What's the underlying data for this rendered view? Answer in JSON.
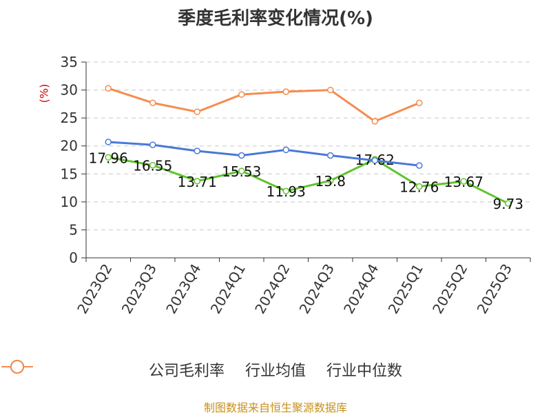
{
  "chart_data": {
    "type": "line",
    "title": "季度毛利率变化情况(%)",
    "ylabel": "(%)",
    "categories": [
      "2023Q2",
      "2023Q3",
      "2023Q4",
      "2024Q1",
      "2024Q2",
      "2024Q3",
      "2024Q4",
      "2025Q1",
      "2025Q2",
      "2025Q3"
    ],
    "ylim": [
      0,
      35
    ],
    "yticks": [
      0,
      5,
      10,
      15,
      20,
      25,
      30,
      35
    ],
    "grid": true,
    "legend_position": "bottom",
    "series": [
      {
        "name": "公司毛利率",
        "color": "#5ec42b",
        "labels": true,
        "values": [
          17.96,
          16.55,
          13.71,
          15.53,
          11.93,
          13.8,
          17.62,
          12.76,
          13.67,
          9.73
        ]
      },
      {
        "name": "行业均值",
        "color": "#4a78d8",
        "labels": false,
        "values": [
          20.7,
          20.2,
          19.1,
          18.3,
          19.3,
          18.3,
          17.4,
          16.5,
          null,
          null
        ]
      },
      {
        "name": "行业中位数",
        "color": "#f58c4f",
        "labels": false,
        "values": [
          30.3,
          27.7,
          26.1,
          29.2,
          29.7,
          30.0,
          24.4,
          27.7,
          null,
          null
        ]
      }
    ]
  },
  "source": "制图数据来自恒生聚源数据库"
}
